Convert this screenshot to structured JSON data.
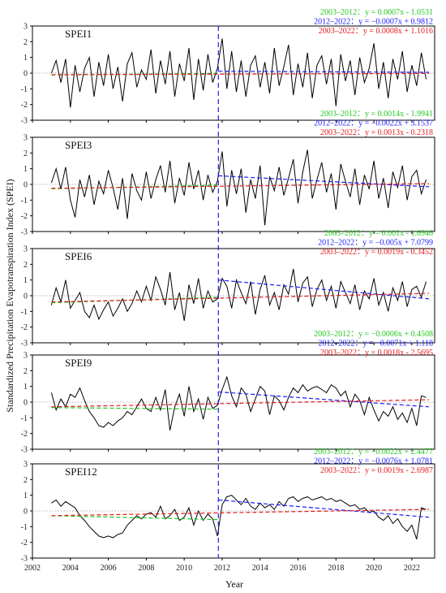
{
  "chart_data": {
    "type": "line",
    "ylabel": "Standardized Precipitation Evapotranspiration Index (SPEI)",
    "xlabel": "Year",
    "xlim": [
      2002,
      2023.2
    ],
    "x_ticks": [
      "2002",
      "2004",
      "2006",
      "2008",
      "2010",
      "2012",
      "2014",
      "2016",
      "2018",
      "2020",
      "2022"
    ],
    "y_ticks": [
      "-3",
      "-2",
      "-1",
      "0",
      "1",
      "2",
      "3"
    ],
    "break_year": 2011.8,
    "colors": {
      "series": "#000000",
      "eq1": "#22c81e",
      "eq2": "#1a1aff",
      "eq3": "#e31a1c",
      "zero": "#999999",
      "break": "#1a1aff"
    },
    "panels": [
      {
        "label": "SPEI1",
        "ylim": [
          -3,
          3
        ],
        "equations": [
          "2003–2012：y = 0.0007x - 1.0531",
          "2012–2022：y = −0.0007x + 0.9812",
          "2003–2022：y = 0.0008x + 1.1016"
        ],
        "trend_periods": [
          [
            2003,
            2011.8,
            -0.12,
            -0.02
          ],
          [
            2011.8,
            2022.9,
            0.12,
            0.05
          ],
          [
            2003,
            2022.9,
            -0.1,
            -0.02
          ]
        ],
        "x": [
          2003.0,
          2003.25,
          2003.5,
          2003.75,
          2004.0,
          2004.25,
          2004.5,
          2004.75,
          2005.0,
          2005.25,
          2005.5,
          2005.75,
          2006.0,
          2006.25,
          2006.5,
          2006.75,
          2007.0,
          2007.25,
          2007.5,
          2007.75,
          2008.0,
          2008.25,
          2008.5,
          2008.75,
          2009.0,
          2009.25,
          2009.5,
          2009.75,
          2010.0,
          2010.25,
          2010.5,
          2010.75,
          2011.0,
          2011.25,
          2011.5,
          2011.75,
          2012.0,
          2012.25,
          2012.5,
          2012.75,
          2013.0,
          2013.25,
          2013.5,
          2013.75,
          2014.0,
          2014.25,
          2014.5,
          2014.75,
          2015.0,
          2015.25,
          2015.5,
          2015.75,
          2016.0,
          2016.25,
          2016.5,
          2016.75,
          2017.0,
          2017.25,
          2017.5,
          2017.75,
          2018.0,
          2018.25,
          2018.5,
          2018.75,
          2019.0,
          2019.25,
          2019.5,
          2019.75,
          2020.0,
          2020.25,
          2020.5,
          2020.75,
          2021.0,
          2021.25,
          2021.5,
          2021.75,
          2022.0,
          2022.25,
          2022.5,
          2022.75
        ],
        "values": [
          0.0,
          0.8,
          -0.6,
          0.9,
          -2.2,
          0.5,
          -1.2,
          0.3,
          1.0,
          -1.5,
          0.7,
          -0.8,
          1.2,
          -1.0,
          0.4,
          -1.8,
          0.6,
          1.3,
          -0.9,
          0.2,
          -0.4,
          1.5,
          -1.3,
          0.8,
          -0.7,
          1.4,
          -1.5,
          0.6,
          -0.5,
          1.6,
          -1.7,
          0.9,
          -1.1,
          1.2,
          -0.6,
          0.3,
          2.2,
          -1.0,
          1.4,
          -1.2,
          0.8,
          -1.5,
          0.5,
          1.1,
          -0.9,
          0.7,
          -1.3,
          1.6,
          -0.8,
          0.4,
          1.8,
          -1.4,
          0.6,
          -0.9,
          1.3,
          -1.6,
          0.5,
          1.1,
          -0.7,
          0.9,
          -2.1,
          1.2,
          -0.5,
          0.8,
          -1.4,
          1.0,
          -0.6,
          0.3,
          1.9,
          -1.0,
          0.7,
          -1.6,
          0.9,
          -0.4,
          1.4,
          -1.2,
          0.5,
          -0.8,
          1.3,
          -0.4
        ]
      },
      {
        "label": "SPEI3",
        "ylim": [
          -3,
          3
        ],
        "equations": [
          "2003–2012：y = 0.0014x - 1.9941",
          "2012–2022：y = −0.0022x + 3.1537",
          "2003–2022：y = 0.0013x - 0.2318"
        ],
        "trend_periods": [
          [
            2003,
            2011.8,
            -0.28,
            -0.05
          ],
          [
            2011.8,
            2022.9,
            0.55,
            -0.15
          ],
          [
            2003,
            2022.9,
            -0.25,
            0.05
          ]
        ],
        "x": [
          2003.0,
          2003.25,
          2003.5,
          2003.75,
          2004.0,
          2004.25,
          2004.5,
          2004.75,
          2005.0,
          2005.25,
          2005.5,
          2005.75,
          2006.0,
          2006.25,
          2006.5,
          2006.75,
          2007.0,
          2007.25,
          2007.5,
          2007.75,
          2008.0,
          2008.25,
          2008.5,
          2008.75,
          2009.0,
          2009.25,
          2009.5,
          2009.75,
          2010.0,
          2010.25,
          2010.5,
          2010.75,
          2011.0,
          2011.25,
          2011.5,
          2011.75,
          2012.0,
          2012.25,
          2012.5,
          2012.75,
          2013.0,
          2013.25,
          2013.5,
          2013.75,
          2014.0,
          2014.25,
          2014.5,
          2014.75,
          2015.0,
          2015.25,
          2015.5,
          2015.75,
          2016.0,
          2016.25,
          2016.5,
          2016.75,
          2017.0,
          2017.25,
          2017.5,
          2017.75,
          2018.0,
          2018.25,
          2018.5,
          2018.75,
          2019.0,
          2019.25,
          2019.5,
          2019.75,
          2020.0,
          2020.25,
          2020.5,
          2020.75,
          2021.0,
          2021.25,
          2021.5,
          2021.75,
          2022.0,
          2022.25,
          2022.5,
          2022.75
        ],
        "values": [
          0.1,
          1.0,
          -0.3,
          1.1,
          -1.0,
          -2.1,
          0.3,
          -0.8,
          0.6,
          -1.3,
          0.2,
          -0.6,
          0.9,
          -0.2,
          -1.6,
          0.4,
          -2.2,
          0.7,
          -0.4,
          -1.0,
          0.8,
          -0.9,
          0.3,
          1.2,
          -0.5,
          1.5,
          -1.2,
          0.4,
          -0.7,
          1.4,
          -0.3,
          0.9,
          -1.0,
          0.6,
          -0.5,
          0.2,
          2.1,
          -1.4,
          0.9,
          -0.6,
          1.0,
          -1.8,
          0.3,
          -0.9,
          1.2,
          -2.6,
          0.5,
          -0.4,
          1.1,
          -0.7,
          0.4,
          1.6,
          -1.2,
          0.8,
          2.2,
          -0.9,
          0.3,
          1.4,
          -0.5,
          0.7,
          -1.6,
          1.3,
          0.2,
          -0.8,
          1.0,
          -1.3,
          0.6,
          -0.3,
          1.5,
          -0.9,
          0.4,
          -1.5,
          0.8,
          -0.2,
          1.2,
          -1.0,
          0.5,
          0.9,
          -0.6,
          0.3
        ]
      },
      {
        "label": "SPEI6",
        "ylim": [
          -3,
          3
        ],
        "equations": [
          "2003–2012：y = 0.001x - 1.6946",
          "2012–2022：y = −0.005x + 7.0799",
          "2003–2022：y = 0.0019x - 0.3452"
        ],
        "trend_periods": [
          [
            2003,
            2011.8,
            -0.45,
            -0.1
          ],
          [
            2011.8,
            2022.9,
            1.0,
            -0.2
          ],
          [
            2003,
            2022.9,
            -0.4,
            0.15
          ]
        ],
        "x": [
          2003.0,
          2003.25,
          2003.5,
          2003.75,
          2004.0,
          2004.25,
          2004.5,
          2004.75,
          2005.0,
          2005.25,
          2005.5,
          2005.75,
          2006.0,
          2006.25,
          2006.5,
          2006.75,
          2007.0,
          2007.25,
          2007.5,
          2007.75,
          2008.0,
          2008.25,
          2008.5,
          2008.75,
          2009.0,
          2009.25,
          2009.5,
          2009.75,
          2010.0,
          2010.25,
          2010.5,
          2010.75,
          2011.0,
          2011.25,
          2011.5,
          2011.75,
          2012.0,
          2012.25,
          2012.5,
          2012.75,
          2013.0,
          2013.25,
          2013.5,
          2013.75,
          2014.0,
          2014.25,
          2014.5,
          2014.75,
          2015.0,
          2015.25,
          2015.5,
          2015.75,
          2016.0,
          2016.25,
          2016.5,
          2016.75,
          2017.0,
          2017.25,
          2017.5,
          2017.75,
          2018.0,
          2018.25,
          2018.5,
          2018.75,
          2019.0,
          2019.25,
          2019.5,
          2019.75,
          2020.0,
          2020.25,
          2020.5,
          2020.75,
          2021.0,
          2021.25,
          2021.5,
          2021.75,
          2022.0,
          2022.25,
          2022.5,
          2022.75
        ],
        "values": [
          -0.6,
          0.5,
          -0.4,
          1.0,
          -0.8,
          -0.3,
          0.2,
          -1.0,
          -1.4,
          -0.6,
          -1.5,
          -0.9,
          -0.4,
          -1.3,
          -0.8,
          -0.2,
          -1.0,
          -0.5,
          0.3,
          -0.4,
          0.6,
          -0.3,
          1.2,
          0.4,
          -0.6,
          1.5,
          -0.9,
          0.2,
          -1.6,
          0.7,
          -0.5,
          1.1,
          -0.8,
          0.3,
          -0.4,
          -0.2,
          1.1,
          0.6,
          -0.8,
          1.0,
          0.2,
          -0.5,
          0.9,
          -1.2,
          0.4,
          1.3,
          -0.6,
          0.2,
          -0.9,
          0.7,
          0.1,
          1.7,
          -0.4,
          0.8,
          1.2,
          -0.7,
          0.4,
          1.0,
          -0.3,
          0.6,
          -0.8,
          0.9,
          0.2,
          -0.5,
          0.7,
          -0.9,
          0.3,
          -0.2,
          1.1,
          -0.6,
          0.2,
          -1.0,
          0.5,
          -0.3,
          0.9,
          -0.7,
          0.4,
          0.6,
          -0.1,
          0.9
        ]
      },
      {
        "label": "SPEI9",
        "ylim": [
          -3,
          3
        ],
        "equations": [
          "2003–2012：y = −0.0006x + 0.4508",
          "2012–2022：y = −0.0071x + 1.118",
          "2003–2022：y = 0.0018x - 2.5695"
        ],
        "trend_periods": [
          [
            2003,
            2011.8,
            -0.35,
            -0.45
          ],
          [
            2011.8,
            2022.9,
            0.65,
            -0.3
          ],
          [
            2003,
            2022.9,
            -0.3,
            0.15
          ]
        ],
        "x": [
          2003.0,
          2003.25,
          2003.5,
          2003.75,
          2004.0,
          2004.25,
          2004.5,
          2004.75,
          2005.0,
          2005.25,
          2005.5,
          2005.75,
          2006.0,
          2006.25,
          2006.5,
          2006.75,
          2007.0,
          2007.25,
          2007.5,
          2007.75,
          2008.0,
          2008.25,
          2008.5,
          2008.75,
          2009.0,
          2009.25,
          2009.5,
          2009.75,
          2010.0,
          2010.25,
          2010.5,
          2010.75,
          2011.0,
          2011.25,
          2011.5,
          2011.75,
          2012.0,
          2012.25,
          2012.5,
          2012.75,
          2013.0,
          2013.25,
          2013.5,
          2013.75,
          2014.0,
          2014.25,
          2014.5,
          2014.75,
          2015.0,
          2015.25,
          2015.5,
          2015.75,
          2016.0,
          2016.25,
          2016.5,
          2016.75,
          2017.0,
          2017.25,
          2017.5,
          2017.75,
          2018.0,
          2018.25,
          2018.5,
          2018.75,
          2019.0,
          2019.25,
          2019.5,
          2019.75,
          2020.0,
          2020.25,
          2020.5,
          2020.75,
          2021.0,
          2021.25,
          2021.5,
          2021.75,
          2022.0,
          2022.25,
          2022.5,
          2022.75
        ],
        "values": [
          0.6,
          -0.5,
          0.2,
          -0.3,
          0.5,
          0.3,
          0.9,
          0.1,
          -0.6,
          -1.0,
          -1.5,
          -1.6,
          -1.3,
          -1.5,
          -1.2,
          -1.0,
          -0.6,
          -0.8,
          -0.3,
          0.2,
          -0.4,
          -0.6,
          0.3,
          -0.5,
          0.8,
          -1.8,
          -0.3,
          0.5,
          -0.9,
          1.0,
          -0.6,
          0.2,
          -1.1,
          0.3,
          -0.4,
          -0.2,
          0.8,
          1.6,
          0.4,
          -0.3,
          0.9,
          0.5,
          -0.6,
          0.2,
          1.0,
          0.7,
          -0.8,
          0.4,
          0.1,
          -0.5,
          0.3,
          0.9,
          0.6,
          1.1,
          0.7,
          0.9,
          1.0,
          0.8,
          0.6,
          1.1,
          0.9,
          0.4,
          0.7,
          -0.3,
          0.5,
          0.1,
          -0.8,
          0.3,
          -0.5,
          -1.2,
          -0.6,
          -0.9,
          -0.3,
          -1.1,
          -0.7,
          -1.3,
          -0.4,
          -1.5,
          0.4,
          0.3
        ]
      },
      {
        "label": "SPEI12",
        "ylim": [
          -3,
          3
        ],
        "equations": [
          "2003–2012：y = −0.0022x + 2.4477",
          "2012–2022：y = −0.0076x + 1.0781",
          "2003–2022：y = 0.0019x - 2.6987"
        ],
        "trend_periods": [
          [
            2003,
            2011.8,
            -0.3,
            -0.55
          ],
          [
            2011.8,
            2022.9,
            0.7,
            -0.4
          ],
          [
            2003,
            2022.9,
            -0.3,
            0.1
          ]
        ],
        "x": [
          2003.0,
          2003.25,
          2003.5,
          2003.75,
          2004.0,
          2004.25,
          2004.5,
          2004.75,
          2005.0,
          2005.25,
          2005.5,
          2005.75,
          2006.0,
          2006.25,
          2006.5,
          2006.75,
          2007.0,
          2007.25,
          2007.5,
          2007.75,
          2008.0,
          2008.25,
          2008.5,
          2008.75,
          2009.0,
          2009.25,
          2009.5,
          2009.75,
          2010.0,
          2010.25,
          2010.5,
          2010.75,
          2011.0,
          2011.25,
          2011.5,
          2011.75,
          2012.0,
          2012.25,
          2012.5,
          2012.75,
          2013.0,
          2013.25,
          2013.5,
          2013.75,
          2014.0,
          2014.25,
          2014.5,
          2014.75,
          2015.0,
          2015.25,
          2015.5,
          2015.75,
          2016.0,
          2016.25,
          2016.5,
          2016.75,
          2017.0,
          2017.25,
          2017.5,
          2017.75,
          2018.0,
          2018.25,
          2018.5,
          2018.75,
          2019.0,
          2019.25,
          2019.5,
          2019.75,
          2020.0,
          2020.25,
          2020.5,
          2020.75,
          2021.0,
          2021.25,
          2021.5,
          2021.75,
          2022.0,
          2022.25,
          2022.5,
          2022.75
        ],
        "values": [
          0.5,
          0.7,
          0.3,
          0.6,
          0.4,
          0.2,
          -0.3,
          -0.6,
          -1.0,
          -1.3,
          -1.6,
          -1.7,
          -1.6,
          -1.7,
          -1.5,
          -1.4,
          -0.9,
          -0.6,
          -0.3,
          -0.5,
          -0.2,
          -0.1,
          -0.4,
          0.3,
          -0.5,
          -0.3,
          0.1,
          -0.6,
          -0.4,
          0.2,
          -0.9,
          0.0,
          -0.6,
          -0.2,
          -0.5,
          -1.6,
          0.4,
          0.9,
          1.0,
          0.7,
          0.4,
          0.8,
          0.3,
          0.1,
          0.5,
          0.2,
          0.4,
          0.1,
          0.6,
          0.3,
          0.8,
          0.9,
          0.6,
          0.8,
          0.9,
          0.7,
          0.8,
          0.9,
          0.7,
          0.8,
          0.6,
          0.7,
          0.5,
          0.3,
          0.4,
          0.1,
          0.2,
          -0.1,
          0.0,
          -0.4,
          -0.6,
          -0.3,
          -0.8,
          -0.5,
          -1.0,
          -1.3,
          -0.9,
          -1.8,
          0.2,
          0.1
        ]
      }
    ]
  }
}
